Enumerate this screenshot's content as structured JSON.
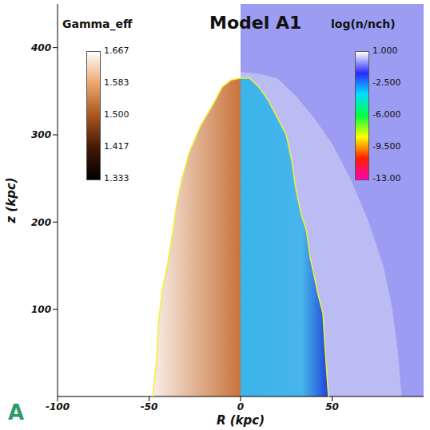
{
  "chart_data": {
    "type": "area",
    "title": "Model A1",
    "panel_label": "A",
    "x_label": "R (kpc)",
    "y_label": "z (kpc)",
    "xlim": [
      -100,
      100
    ],
    "xticks": [
      -100,
      -50,
      0,
      50
    ],
    "ylim": [
      0,
      450
    ],
    "yticks": [
      100,
      200,
      300,
      400
    ],
    "grid": false,
    "regions": [
      {
        "R": [
          0,
          100
        ],
        "z": [
          450,
          450
        ],
        "color": "#9c9cf2"
      },
      {
        "R": [
          0,
          10,
          20,
          30,
          40,
          50,
          60,
          70,
          78,
          83,
          86,
          88
        ],
        "z": [
          372,
          370,
          365,
          345,
          320,
          290,
          250,
          200,
          150,
          100,
          50,
          0
        ],
        "color": "#bcbcf4"
      },
      {
        "R": [
          -48,
          -46,
          -45,
          -43,
          -40,
          -37,
          -35,
          -32,
          -28,
          -22,
          -15,
          -10,
          -5,
          0
        ],
        "z": [
          0,
          40,
          80,
          120,
          150,
          190,
          220,
          250,
          280,
          310,
          335,
          355,
          363,
          365
        ],
        "color": "#c8733a"
      },
      {
        "R": [
          0,
          5,
          10,
          15,
          20,
          25,
          28,
          30,
          33,
          36,
          38,
          40,
          42,
          45,
          46,
          47,
          48
        ],
        "z": [
          365,
          365,
          355,
          340,
          320,
          300,
          270,
          240,
          210,
          190,
          160,
          140,
          120,
          95,
          60,
          30,
          0
        ],
        "color": "#3ab4ea"
      }
    ],
    "contour": {
      "R": [
        -48,
        -46,
        -45,
        -43,
        -40,
        -37,
        -35,
        -32,
        -28,
        -22,
        -15,
        -10,
        -5,
        0,
        5,
        10,
        15,
        20,
        25,
        28,
        30,
        33,
        36,
        38,
        40,
        42,
        45,
        46,
        47,
        48
      ],
      "z": [
        0,
        40,
        80,
        120,
        150,
        190,
        220,
        250,
        280,
        310,
        335,
        355,
        363,
        365,
        365,
        355,
        340,
        320,
        300,
        270,
        240,
        210,
        190,
        160,
        140,
        120,
        95,
        60,
        30,
        0
      ],
      "color": "#f2f230"
    },
    "colorbars": [
      {
        "label": "Gamma_eff",
        "range": [
          1.333,
          1.667
        ],
        "ticks": [
          1.667,
          1.583,
          {
            "value": 1.5,
            "label": "1.500"
          },
          1.417,
          1.333
        ],
        "colors": [
          "#ffffff",
          "#eba56c",
          "#a8551f",
          "#431806",
          "#000000"
        ]
      },
      {
        "label": "log(n/nch)",
        "range": [
          -13,
          1
        ],
        "ticks": [
          {
            "value": 1,
            "label": "1.000"
          },
          {
            "value": -2.5,
            "label": "-2.500"
          },
          {
            "value": -6,
            "label": "-6.000"
          },
          {
            "value": -9.5,
            "label": "-9.500"
          },
          {
            "value": -13,
            "label": "-13.00"
          }
        ],
        "colors": [
          "#ffffff",
          "#2a2aff",
          "#00e0ff",
          "#00ff40",
          "#ffff00",
          "#ff2000",
          "#ff00b0"
        ]
      }
    ]
  }
}
